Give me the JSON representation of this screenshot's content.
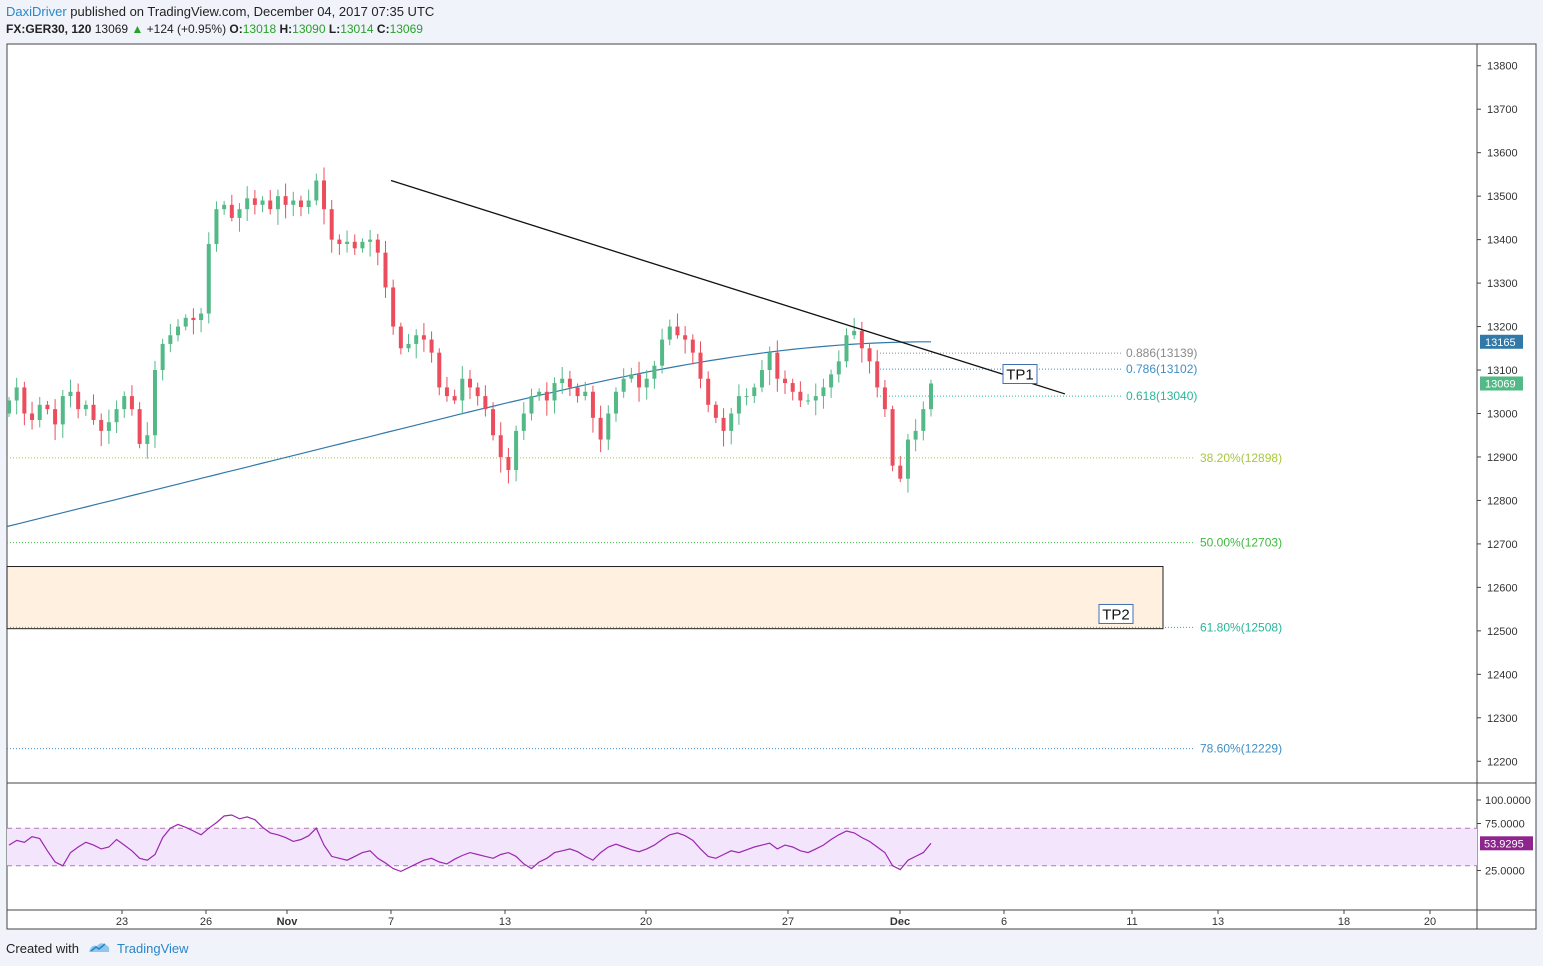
{
  "header": {
    "author": "DaxiDriver",
    "published": "published on TradingView.com, December 04, 2017 07:35 UTC",
    "symbol": "FX:GER30, 120",
    "last": "13069",
    "change": "+124 (+0.95%)",
    "o_label": "O:",
    "o_value": "13018",
    "h_label": "H:",
    "h_value": "13090",
    "l_label": "L:",
    "l_value": "13014",
    "c_label": "C:",
    "c_value": "13069"
  },
  "footer": {
    "created": "Created with",
    "brand": "TradingView"
  },
  "colors": {
    "up": "#53b987",
    "down": "#eb4d5c",
    "ma": "#3179a8",
    "rsi": "#9c27b0",
    "rsi_band": "#f3e5fb",
    "zone": "#fff0e0"
  },
  "chart_data": {
    "type": "candlestick",
    "price_axis": {
      "min": 12150,
      "max": 13850,
      "ticks": [
        "13800",
        "13700",
        "13600",
        "13500",
        "13400",
        "13300",
        "13200",
        "13100",
        "13000",
        "12900",
        "12800",
        "12700",
        "12600",
        "12500",
        "12400",
        "12300",
        "12200"
      ]
    },
    "time_axis": {
      "labels": [
        "23",
        "26",
        "Nov",
        "7",
        "13",
        "20",
        "27",
        "Dec",
        "6",
        "11",
        "13",
        "18",
        "20"
      ],
      "bold": [
        "Nov",
        "Dec"
      ]
    },
    "price_labels": {
      "ma": "13165",
      "last": "13069"
    },
    "fib_levels": [
      {
        "label": "0.886(13139)",
        "price": 13139,
        "color": "#8a8a8a"
      },
      {
        "label": "0.786(13102)",
        "price": 13102,
        "color": "#3f8fc6"
      },
      {
        "label": "0.618(13040)",
        "price": 13040,
        "color": "#2bb59a"
      },
      {
        "label": "38.20%(12898)",
        "price": 12898,
        "color": "#a8c83c"
      },
      {
        "label": "50.00%(12703)",
        "price": 12703,
        "color": "#3fbb3f"
      },
      {
        "label": "61.80%(12508)",
        "price": 12508,
        "color": "#2bb59a"
      },
      {
        "label": "78.60%(12229)",
        "price": 12229,
        "color": "#3f8fc6"
      }
    ],
    "annotations": [
      {
        "label": "TP1",
        "price": 13092
      },
      {
        "label": "TP2",
        "price": 12540
      }
    ],
    "zone": {
      "top": 12648,
      "bottom": 12505
    },
    "trendline": {
      "from_price": 13536,
      "to_price": 13045
    },
    "candles_anchor_closes": [
      13030,
      13060,
      13000,
      12985,
      13020,
      13010,
      12975,
      13040,
      13050,
      13010,
      13020,
      12985,
      12960,
      12980,
      13010,
      13040,
      13010,
      12930,
      12950,
      13100,
      13160,
      13180,
      13200,
      13220,
      13215,
      13230,
      13390,
      13470,
      13480,
      13450,
      13470,
      13495,
      13480,
      13490,
      13470,
      13500,
      13480,
      13490,
      13475,
      13490,
      13536,
      13470,
      13400,
      13390,
      13395,
      13380,
      13395,
      13400,
      13370,
      13290,
      13200,
      13150,
      13160,
      13180,
      13170,
      13140,
      13060,
      13040,
      13030,
      13080,
      13060,
      13040,
      13010,
      12950,
      12900,
      12870,
      12960,
      13000,
      13040,
      13050,
      13030,
      13070,
      13080,
      13060,
      13040,
      13050,
      12990,
      12940,
      13000,
      13050,
      13080,
      13090,
      13060,
      13080,
      13110,
      13170,
      13200,
      13180,
      13170,
      13140,
      13080,
      13020,
      12990,
      12960,
      13000,
      13040,
      13040,
      13060,
      13100,
      13140,
      13080,
      13070,
      13050,
      13030,
      13030,
      13040,
      13060,
      13090,
      13120,
      13180,
      13190,
      13150,
      13120,
      13060,
      13010,
      12880,
      12850,
      12940,
      12960,
      13010,
      13069
    ],
    "ma_start": 12740,
    "ma_end": 13165,
    "rsi": {
      "ticks": [
        "100.0000",
        "75.0000",
        "25.0000"
      ],
      "last": "53.9295",
      "upper": 70,
      "lower": 30,
      "values": [
        52,
        57,
        55,
        61,
        59,
        46,
        34,
        30,
        44,
        50,
        55,
        52,
        48,
        50,
        58,
        52,
        46,
        38,
        36,
        42,
        60,
        70,
        74,
        71,
        67,
        63,
        70,
        76,
        83,
        84,
        80,
        82,
        79,
        71,
        65,
        63,
        60,
        56,
        58,
        62,
        70,
        52,
        40,
        38,
        36,
        40,
        44,
        46,
        38,
        33,
        27,
        24,
        28,
        32,
        36,
        38,
        34,
        32,
        37,
        41,
        44,
        42,
        40,
        38,
        42,
        44,
        40,
        32,
        27,
        34,
        38,
        44,
        46,
        48,
        45,
        40,
        36,
        44,
        50,
        53,
        50,
        47,
        45,
        48,
        52,
        58,
        63,
        65,
        62,
        57,
        48,
        40,
        38,
        42,
        46,
        44,
        47,
        50,
        52,
        54,
        48,
        52,
        50,
        46,
        44,
        48,
        52,
        58,
        63,
        67,
        65,
        60,
        56,
        50,
        44,
        30,
        26,
        36,
        40,
        44,
        53.93
      ]
    }
  }
}
